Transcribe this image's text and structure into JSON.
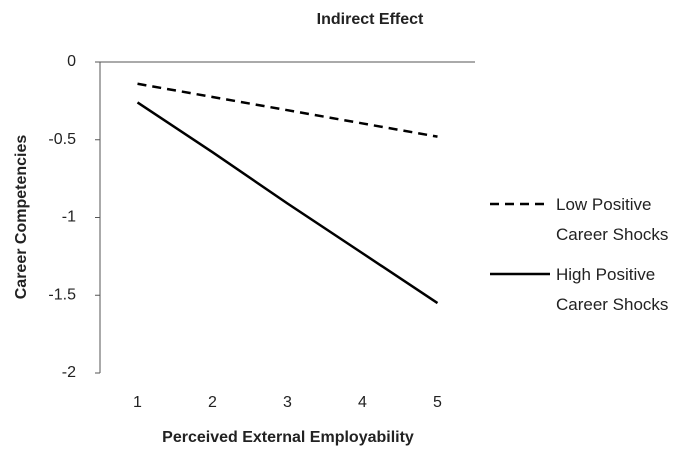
{
  "chart_data": {
    "type": "line",
    "title": "Indirect Effect",
    "x_label": "Perceived External Employability",
    "y_label": "Career Competencies",
    "categories": [
      "1",
      "2",
      "3",
      "4",
      "5"
    ],
    "series": [
      {
        "name": "Low Positive Career Shocks",
        "color": "#000000",
        "dash": "dashed",
        "values": [
          -0.14,
          -0.225,
          -0.31,
          -0.395,
          -0.48
        ]
      },
      {
        "name": "High Positive Career Shocks",
        "color": "#000000",
        "dash": "solid",
        "values": [
          -0.26,
          -0.58,
          -0.91,
          -1.23,
          -1.55
        ]
      }
    ],
    "ylim": [
      -2,
      0
    ],
    "yticks": [
      0,
      -0.5,
      -1,
      -1.5,
      -2
    ],
    "legend": "right",
    "grid": false
  }
}
